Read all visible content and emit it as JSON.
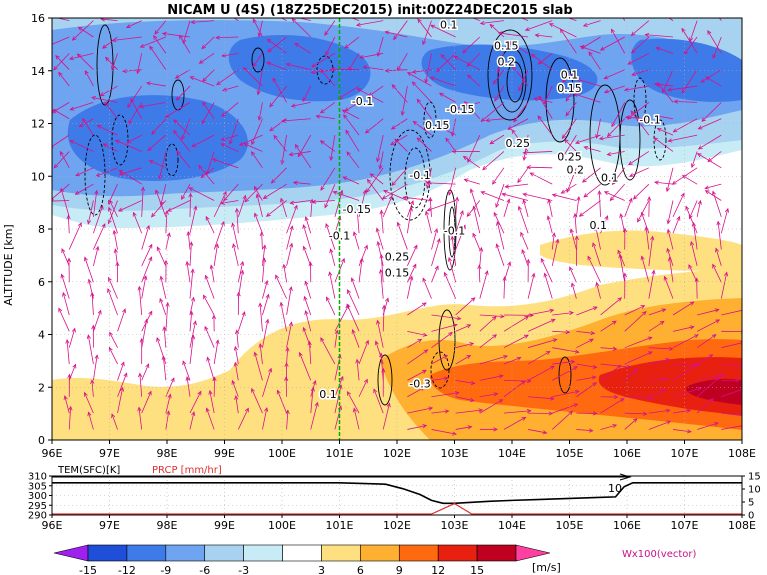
{
  "header": {
    "title": "NICAM U (4S) (18Z25DEC2015) init:00Z24DEC2015 slab"
  },
  "chart_data": [
    {
      "type": "heatmap",
      "ylabel": "ALTITUDE [km]",
      "xlabel": "",
      "x_ticks": [
        "96E",
        "97E",
        "98E",
        "99E",
        "100E",
        "101E",
        "102E",
        "103E",
        "104E",
        "105E",
        "106E",
        "107E",
        "108E"
      ],
      "y_ticks": [
        "0",
        "2",
        "4",
        "6",
        "8",
        "10",
        "12",
        "14",
        "16"
      ],
      "xlim": [
        96,
        108
      ],
      "ylim": [
        0,
        16
      ],
      "grid": true,
      "reference_line_x": 101,
      "contour_labels": [
        {
          "text": "0.1",
          "lon": 102.9,
          "alt": 15.6
        },
        {
          "text": "0.15",
          "lon": 103.9,
          "alt": 14.8
        },
        {
          "text": "0.2",
          "lon": 103.9,
          "alt": 14.2
        },
        {
          "text": "0.1",
          "lon": 105.0,
          "alt": 13.7
        },
        {
          "text": "0.15",
          "lon": 105.0,
          "alt": 13.2
        },
        {
          "text": "-0.1",
          "lon": 101.4,
          "alt": 12.7
        },
        {
          "text": "-0.15",
          "lon": 103.1,
          "alt": 12.4
        },
        {
          "text": "0.15",
          "lon": 102.7,
          "alt": 11.8
        },
        {
          "text": "0.25",
          "lon": 104.1,
          "alt": 11.1
        },
        {
          "text": "0.25",
          "lon": 105.0,
          "alt": 10.6
        },
        {
          "text": "0.2",
          "lon": 105.1,
          "alt": 10.1
        },
        {
          "text": "-0.1",
          "lon": 106.4,
          "alt": 12.0
        },
        {
          "text": "0.1",
          "lon": 105.7,
          "alt": 9.8
        },
        {
          "text": "-0.1",
          "lon": 102.4,
          "alt": 9.9
        },
        {
          "text": "-0.15",
          "lon": 101.3,
          "alt": 8.6
        },
        {
          "text": "-0.1",
          "lon": 101.0,
          "alt": 7.6
        },
        {
          "text": "-0.1",
          "lon": 103.0,
          "alt": 7.8
        },
        {
          "text": "0.1",
          "lon": 105.5,
          "alt": 8.0
        },
        {
          "text": "0.25",
          "lon": 102.0,
          "alt": 6.8
        },
        {
          "text": "0.15",
          "lon": 102.0,
          "alt": 6.2
        },
        {
          "text": "-0.3",
          "lon": 102.4,
          "alt": 2.0
        },
        {
          "text": "0.1",
          "lon": 100.8,
          "alt": 1.6
        }
      ]
    },
    {
      "type": "line",
      "ylabel_left": "TEM(SFC)[K]",
      "ylabel_right": "PRCP [mm/hr]",
      "x_ticks": [
        "96E",
        "97E",
        "98E",
        "99E",
        "100E",
        "101E",
        "102E",
        "103E",
        "104E",
        "105E",
        "106E",
        "107E",
        "108E"
      ],
      "y_ticks_left": [
        "290",
        "295",
        "300",
        "305",
        "310"
      ],
      "y_ticks_right": [
        "0",
        "5",
        "10",
        "15"
      ],
      "ylim_left": [
        290,
        310
      ],
      "ylim_right": [
        0,
        15
      ],
      "annotation": "10",
      "series": [
        {
          "x": [
            96,
            97,
            98,
            99,
            100,
            101,
            101.8,
            102.1,
            102.4,
            102.6,
            102.8,
            103.0,
            103.3,
            103.6,
            104.0,
            104.5,
            105.0,
            105.5,
            105.8,
            105.95,
            106.1,
            106.5,
            107,
            108
          ],
          "y": [
            306.5,
            306.5,
            306.5,
            306.5,
            306.5,
            306.5,
            305.8,
            303.5,
            300.5,
            297.5,
            296.0,
            296.0,
            296.5,
            297.0,
            297.5,
            298.0,
            298.5,
            299.0,
            299.3,
            304.5,
            306.5,
            306.5,
            306.5,
            306.5
          ]
        },
        {
          "x": [
            96,
            102.6,
            103.0,
            103.3,
            108
          ],
          "y": [
            0,
            0,
            4.0,
            0,
            0
          ]
        }
      ]
    }
  ],
  "colorbar": {
    "ticks": [
      "-15",
      "-12",
      "-9",
      "-6",
      "-3",
      "3",
      "6",
      "9",
      "12",
      "15"
    ],
    "unit": "[m/s]",
    "colors": [
      "#a020f0",
      "#1f4ed8",
      "#3e7be8",
      "#6ea4f0",
      "#a8d3f0",
      "#c8ecf5",
      "#ffffff",
      "#ffe080",
      "#ffb030",
      "#ff6a10",
      "#e82010",
      "#c00020",
      "#ff40a0"
    ]
  },
  "legend_vector": "Wx100(vector)"
}
